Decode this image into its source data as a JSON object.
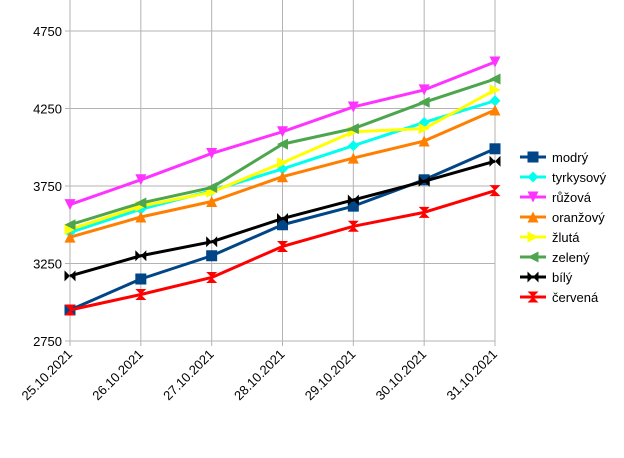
{
  "chart_data": {
    "type": "line",
    "title": "",
    "xlabel": "",
    "ylabel": "",
    "categories": [
      "25.10.2021",
      "26.10.2021",
      "27.10.2021",
      "28.10.2021",
      "29.10.2021",
      "30.10.2021",
      "31.10.2021"
    ],
    "ylim": [
      2750,
      4950
    ],
    "yticks": [
      2750,
      3250,
      3750,
      4250,
      4750
    ],
    "grid": true,
    "legend_position": "right",
    "series": [
      {
        "name": "modrý",
        "color": "#004586",
        "marker": "square",
        "values": [
          2950,
          3150,
          3300,
          3500,
          3620,
          3790,
          3990
        ]
      },
      {
        "name": "tyrkysový",
        "color": "#00ffee",
        "marker": "diamond",
        "values": [
          3450,
          3600,
          3720,
          3860,
          4010,
          4160,
          4300
        ]
      },
      {
        "name": "růžová",
        "color": "#ff33ff",
        "marker": "triangle-down",
        "values": [
          3630,
          3790,
          3960,
          4100,
          4260,
          4370,
          4550
        ]
      },
      {
        "name": "oranžový",
        "color": "#ff8000",
        "marker": "triangle-up",
        "values": [
          3420,
          3550,
          3650,
          3810,
          3930,
          4040,
          4240
        ]
      },
      {
        "name": "žlutá",
        "color": "#ffff00",
        "marker": "triangle-right",
        "values": [
          3470,
          3620,
          3710,
          3900,
          4100,
          4120,
          4370
        ]
      },
      {
        "name": "zelený",
        "color": "#4da64d",
        "marker": "triangle-left",
        "values": [
          3500,
          3640,
          3740,
          4020,
          4120,
          4290,
          4440
        ]
      },
      {
        "name": "bílý",
        "color": "#000000",
        "marker": "bowtie",
        "values": [
          3170,
          3300,
          3390,
          3540,
          3660,
          3780,
          3910
        ]
      },
      {
        "name": "červená",
        "color": "#ff0000",
        "marker": "hourglass",
        "values": [
          2950,
          3050,
          3160,
          3360,
          3490,
          3580,
          3720
        ]
      }
    ]
  }
}
